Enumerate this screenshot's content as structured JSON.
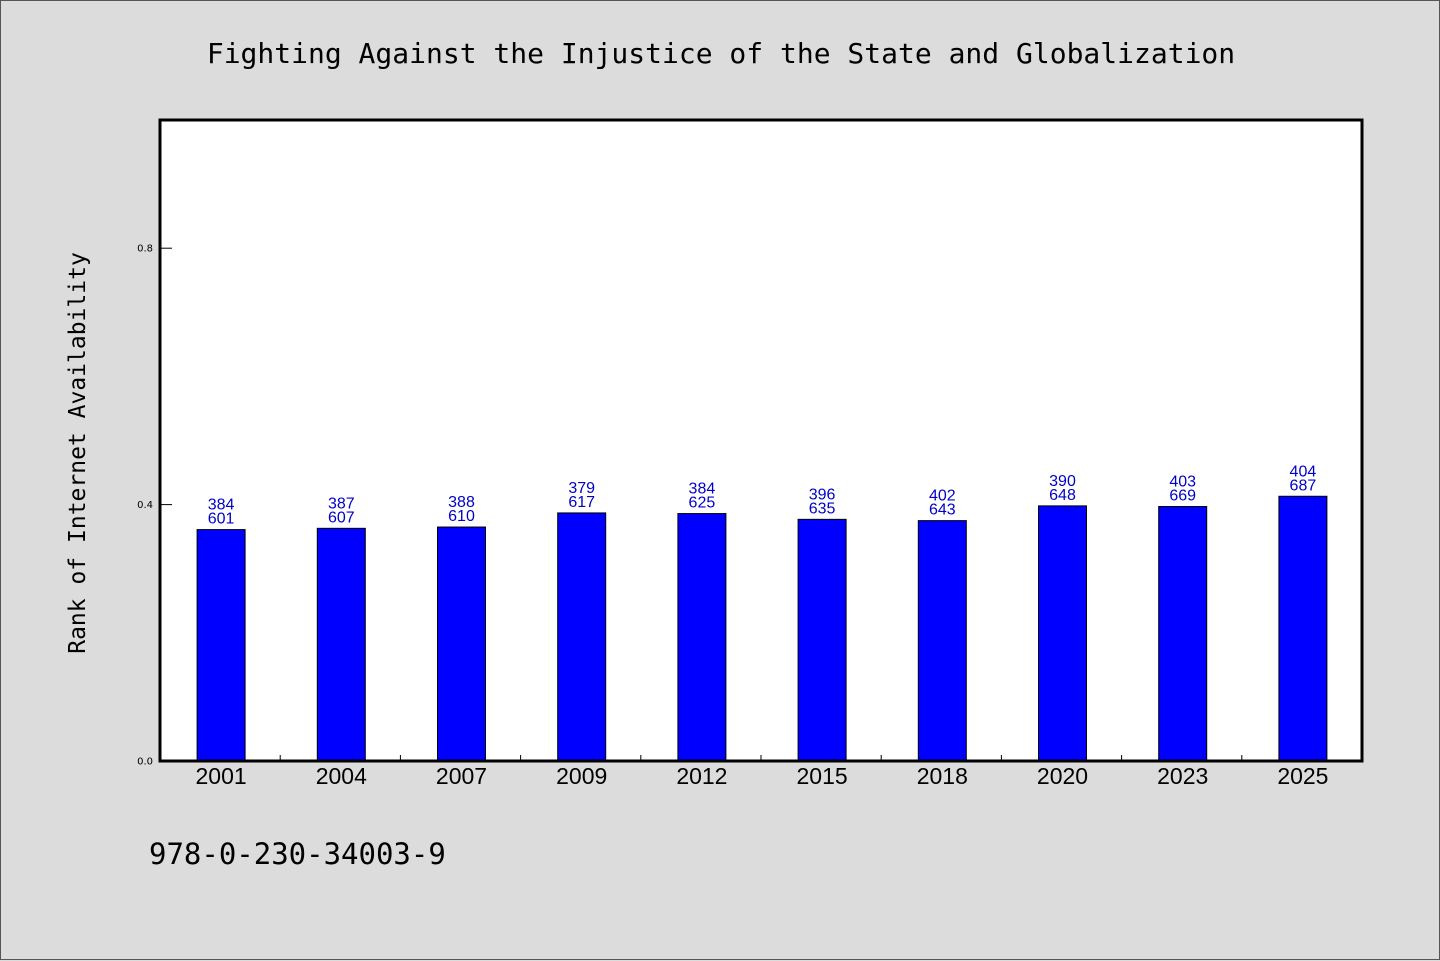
{
  "chart_data": {
    "type": "bar",
    "title": "Fighting Against the Injustice of the State and Globalization",
    "xlabel": "",
    "ylabel": "Rank of Internet Availability",
    "categories": [
      "2001",
      "2004",
      "2007",
      "2009",
      "2012",
      "2015",
      "2018",
      "2020",
      "2023",
      "2025"
    ],
    "values": [
      0.361,
      0.363,
      0.365,
      0.387,
      0.386,
      0.377,
      0.375,
      0.398,
      0.397,
      0.413
    ],
    "annotations": [
      [
        "384",
        "601"
      ],
      [
        "387",
        "607"
      ],
      [
        "388",
        "610"
      ],
      [
        "379",
        "617"
      ],
      [
        "384",
        "625"
      ],
      [
        "396",
        "635"
      ],
      [
        "402",
        "643"
      ],
      [
        "390",
        "648"
      ],
      [
        "403",
        "669"
      ],
      [
        "404",
        "687"
      ]
    ],
    "yticks": [
      0.0,
      0.4,
      0.8
    ],
    "ytick_labels": [
      "0.0",
      "0.4",
      "0.8"
    ],
    "ylim": [
      0,
      1.0
    ],
    "grid": false,
    "legend": null,
    "bar_color": "#0000ff",
    "bar_edge_color": "#000000",
    "label_color": "#0000cc",
    "plot_background": "#ffffff",
    "figure_background": "#dcdcdc"
  },
  "footer": {
    "isbn": "978-0-230-34003-9"
  }
}
